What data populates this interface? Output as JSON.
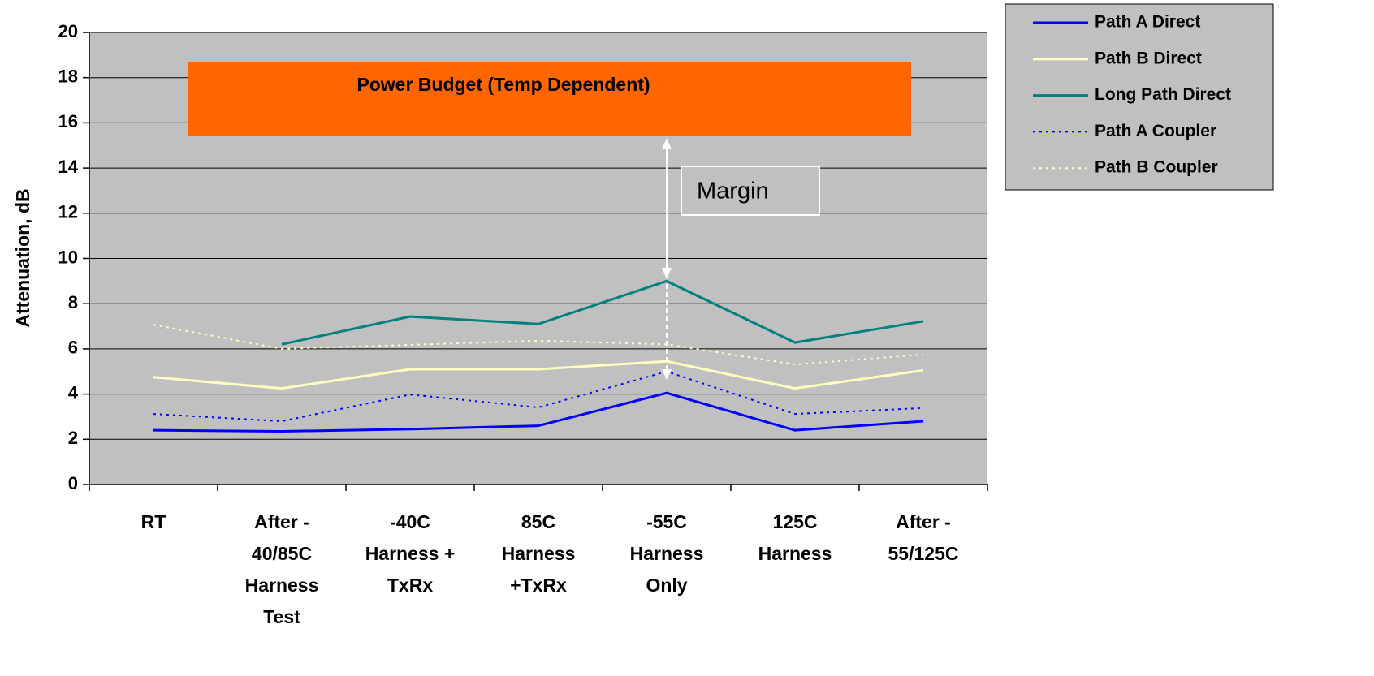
{
  "chart_data": {
    "type": "line",
    "y_label": "Attenuation, dB",
    "categories": [
      "RT",
      "After -\n40/85C\nHarness\nTest",
      "-40C\nHarness +\nTxRx",
      "85C\nHarness\n+TxRx",
      "-55C\nHarness\nOnly",
      "125C\nHarness",
      "After -\n55/125C"
    ],
    "series": [
      {
        "name": "Path A Direct",
        "color": "#0000ff",
        "dash": "solid",
        "values": [
          2.4,
          2.35,
          2.45,
          2.6,
          4.05,
          2.4,
          2.8
        ]
      },
      {
        "name": "Path B Direct",
        "color": "#ffffc0",
        "dash": "solid",
        "values": [
          4.75,
          4.25,
          5.1,
          5.1,
          5.45,
          4.25,
          5.05
        ]
      },
      {
        "name": "Long Path Direct",
        "color": "#008080",
        "dash": "solid",
        "values": [
          null,
          6.2,
          7.43,
          7.1,
          9.0,
          6.28,
          7.22
        ]
      },
      {
        "name": "Path A Coupler",
        "color": "#0000ff",
        "dash": "dotted",
        "values": [
          3.12,
          2.8,
          3.98,
          3.41,
          5.0,
          3.12,
          3.38
        ]
      },
      {
        "name": "Path B Coupler",
        "color": "#ffffc0",
        "dash": "dotted",
        "values": [
          7.07,
          6.0,
          6.18,
          6.36,
          6.2,
          5.31,
          5.75
        ]
      }
    ],
    "annotations": {
      "power_budget": "Power Budget (Temp Dependent)",
      "margin": "Margin"
    },
    "ylim": [
      0,
      20
    ],
    "yticks": [
      0,
      2,
      4,
      6,
      8,
      10,
      12,
      14,
      16,
      18,
      20
    ],
    "grid": true,
    "legend": "top-right"
  }
}
